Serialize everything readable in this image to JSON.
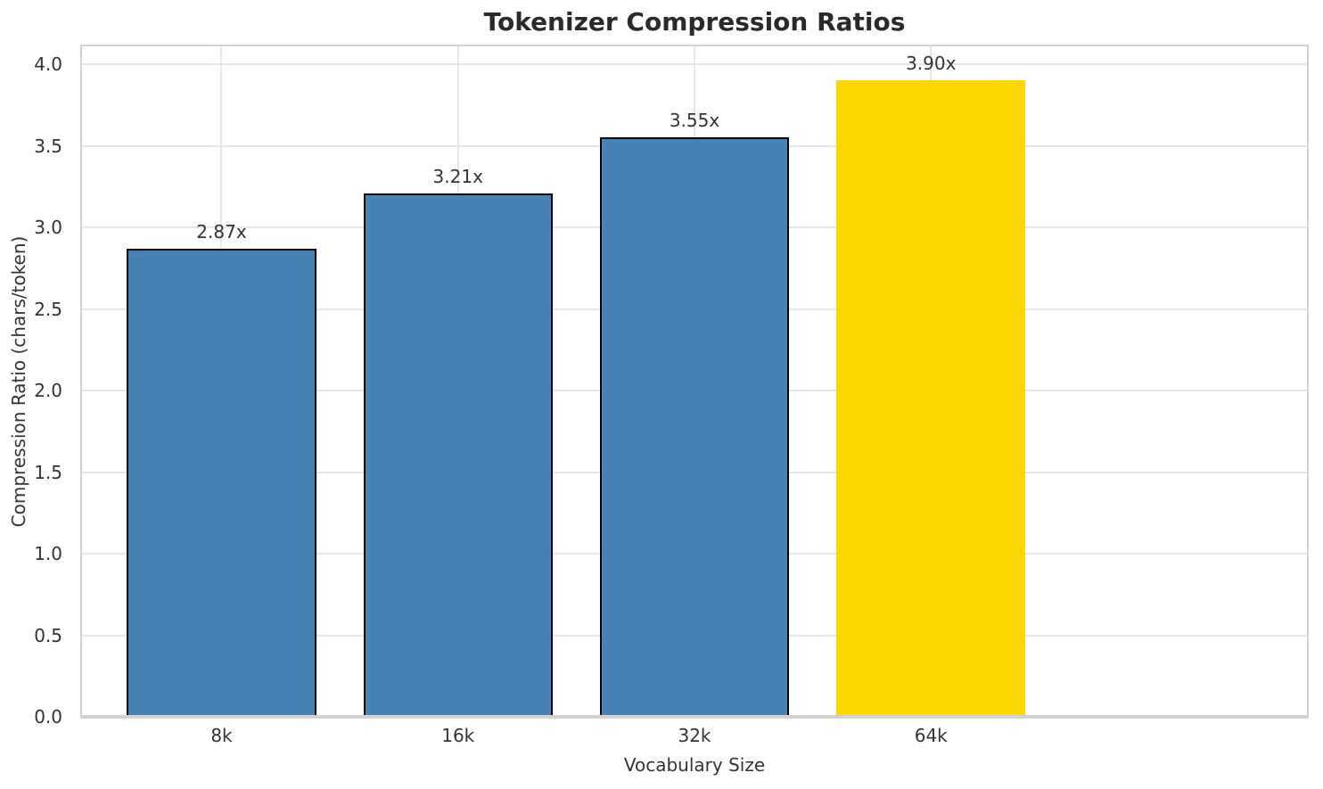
{
  "chart_data": {
    "type": "bar",
    "title": "Tokenizer Compression Ratios",
    "xlabel": "Vocabulary Size",
    "ylabel": "Compression Ratio (chars/token)",
    "categories": [
      "8k",
      "16k",
      "32k",
      "64k"
    ],
    "values": [
      2.87,
      3.21,
      3.55,
      3.9
    ],
    "bar_labels": [
      "2.87x",
      "3.21x",
      "3.55x",
      "3.90x"
    ],
    "bar_colors": [
      "#4682B4",
      "#4682B4",
      "#4682B4",
      "#FFD700"
    ],
    "bar_edge_colors": [
      "#000000",
      "#000000",
      "#000000",
      "none"
    ],
    "highlighted_category": "64k",
    "ylim": [
      0,
      4.11
    ],
    "yticks": [
      0,
      0.5,
      1,
      1.5,
      2,
      2.5,
      3,
      3.5,
      4
    ],
    "ytick_labels": [
      "0.0",
      "0.5",
      "1.0",
      "1.5",
      "2.0",
      "2.5",
      "3.0",
      "3.5",
      "4.0"
    ],
    "grid": true,
    "legend": null,
    "colors": {
      "bar": "#4682B4",
      "highlight": "#FFD700",
      "bar_edge": "#000000",
      "grid": "#E7E7E7",
      "spine": "#D2D2D2",
      "text": "#333333",
      "title": "#2A2A2A",
      "background": "#FFFFFF"
    }
  }
}
